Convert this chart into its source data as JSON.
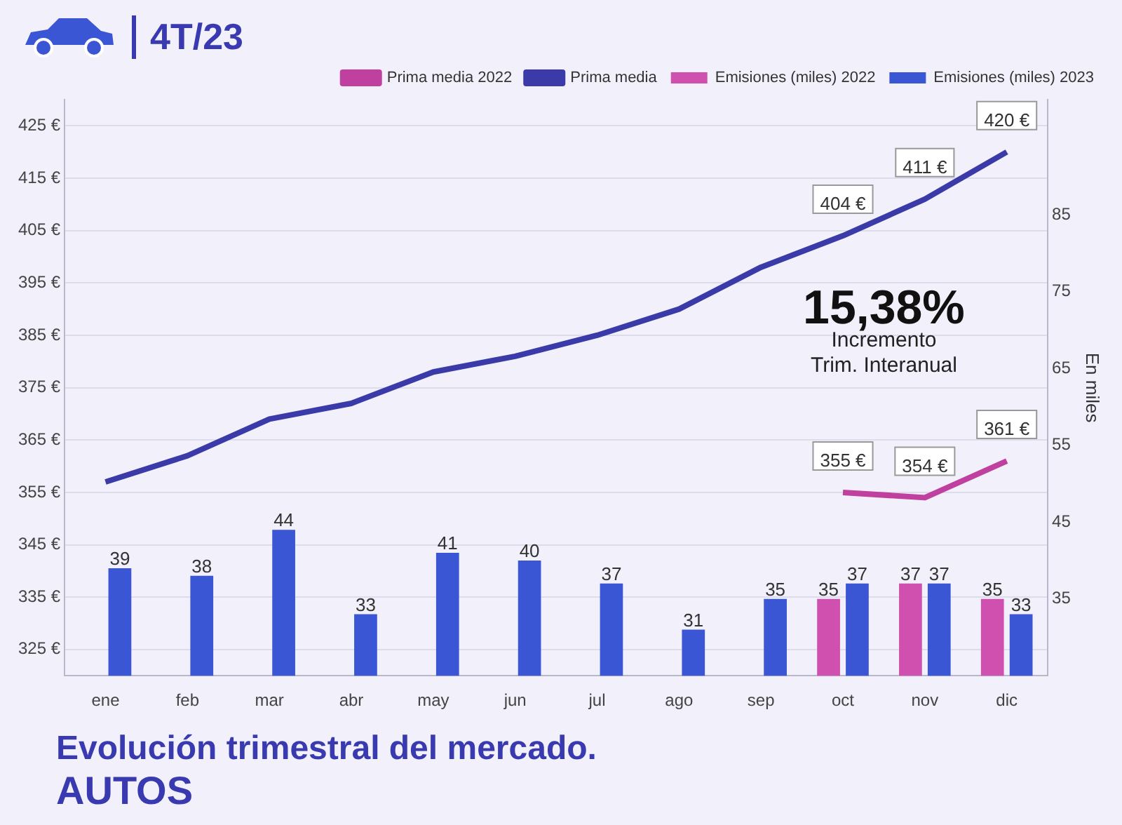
{
  "chart_data": {
    "type": "bar",
    "title": "Evolución trimestral del mercado.",
    "subtitle": "AUTOS",
    "y2label": "En miles",
    "annotations": [
      "4T/23",
      "15,38%",
      "Incremento Trim. Interanual"
    ],
    "categories": [
      "ene",
      "feb",
      "mar",
      "abr",
      "may",
      "jun",
      "jul",
      "ago",
      "sep",
      "oct",
      "nov",
      "dic"
    ],
    "series": [
      {
        "name": "Prima media 2022",
        "type": "line",
        "color": "#c040a0",
        "values": [
          null,
          null,
          null,
          null,
          null,
          null,
          null,
          null,
          null,
          355,
          354,
          361
        ],
        "value_labels": [
          null,
          null,
          null,
          null,
          null,
          null,
          null,
          null,
          null,
          "355 €",
          "354 €",
          "361 €"
        ]
      },
      {
        "name": "Prima media",
        "type": "line",
        "color": "#3a3aa8",
        "values": [
          357,
          362,
          369,
          372,
          378,
          381,
          385,
          390,
          398,
          404,
          411,
          420
        ],
        "value_labels": [
          null,
          null,
          null,
          null,
          null,
          null,
          null,
          null,
          null,
          "404 €",
          "411 €",
          "420 €"
        ]
      },
      {
        "name": "Emisiones (miles) 2022",
        "type": "bar",
        "axis": "y2",
        "color": "#d050b0",
        "values": [
          null,
          null,
          null,
          null,
          null,
          null,
          null,
          null,
          null,
          35,
          37,
          35
        ],
        "value_labels": [
          null,
          null,
          null,
          null,
          null,
          null,
          null,
          null,
          null,
          "35",
          "37",
          "35"
        ]
      },
      {
        "name": "Emisiones (miles) 2023",
        "type": "bar",
        "axis": "y2",
        "color": "#3a56d4",
        "values": [
          39,
          38,
          44,
          33,
          41,
          40,
          37,
          31,
          35,
          37,
          37,
          33
        ],
        "value_labels": [
          "39",
          "38",
          "44",
          "33",
          "41",
          "40",
          "37",
          "31",
          "35",
          "37",
          "37",
          "33"
        ]
      }
    ],
    "ylim": [
      320,
      430
    ],
    "yticks": [
      {
        "value": 325,
        "label": "325 €"
      },
      {
        "value": 335,
        "label": "335 €"
      },
      {
        "value": 345,
        "label": "345 €"
      },
      {
        "value": 355,
        "label": "355 €"
      },
      {
        "value": 365,
        "label": "365 €"
      },
      {
        "value": 375,
        "label": "375 €"
      },
      {
        "value": 385,
        "label": "385 €"
      },
      {
        "value": 395,
        "label": "395 €"
      },
      {
        "value": 405,
        "label": "405 €"
      },
      {
        "value": 415,
        "label": "415 €"
      },
      {
        "value": 425,
        "label": "425 €"
      }
    ],
    "y2lim": [
      25,
      100
    ],
    "y2ticks": [
      35,
      45,
      55,
      65,
      75,
      85
    ],
    "grid": "y",
    "legend": "top right",
    "marker": "none",
    "line_style": "solid"
  }
}
